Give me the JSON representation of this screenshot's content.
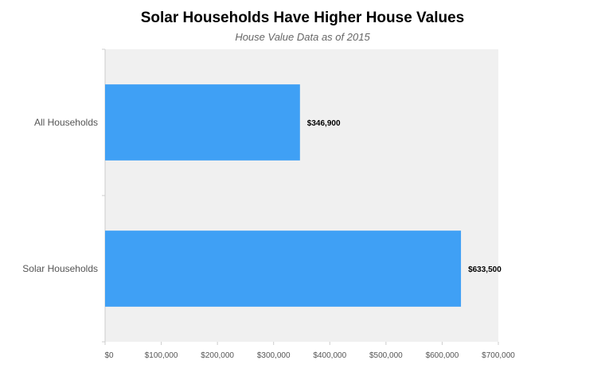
{
  "chart_data": {
    "type": "bar",
    "orientation": "horizontal",
    "title": "Solar Households Have Higher House Values",
    "subtitle": "House Value Data as of 2015",
    "categories": [
      "All Households",
      "Solar Households"
    ],
    "values": [
      346900,
      633500
    ],
    "data_labels": [
      "$346,900",
      "$633,500"
    ],
    "xlim": [
      0,
      700000
    ],
    "x_ticks": [
      0,
      100000,
      200000,
      300000,
      400000,
      500000,
      600000,
      700000
    ],
    "x_tick_labels": [
      "$0",
      "$100,000",
      "$200,000",
      "$300,000",
      "$400,000",
      "$500,000",
      "$600,000",
      "$700,000"
    ],
    "grid": false,
    "legend": "none",
    "bar_color": "#3fa0f5",
    "plot_background": "#f0f0f0"
  }
}
